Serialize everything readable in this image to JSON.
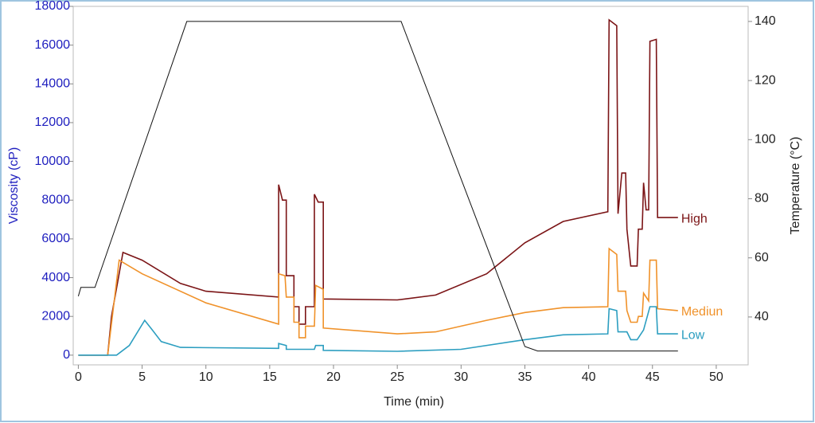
{
  "chart_data": {
    "type": "line",
    "x_label": "Time  (min)",
    "y_label": "Viscosity (cP)",
    "y2_label": "Temperature (°C)",
    "xlim": [
      -0.4,
      52.5
    ],
    "xticks": [
      0,
      5,
      10,
      15,
      20,
      25,
      30,
      35,
      40,
      45,
      50
    ],
    "ylim": [
      -500,
      18000
    ],
    "yticks": [
      0,
      2000,
      4000,
      6000,
      8000,
      10000,
      12000,
      14000,
      16000,
      18000
    ],
    "y2lim": [
      23.8,
      145.1
    ],
    "y2ticks": [
      40,
      60,
      80,
      100,
      120,
      140
    ],
    "series": [
      {
        "name": "High",
        "color": "#7b1416",
        "x": [
          0,
          2.3,
          2.6,
          3.5,
          5,
          8,
          10,
          15.7,
          15.7,
          16.0,
          16.3,
          16.3,
          16.9,
          16.9,
          17.3,
          17.3,
          17.8,
          17.8,
          18.5,
          18.5,
          18.8,
          19.2,
          19.2,
          25,
          28,
          32,
          35,
          38,
          41.5,
          41.6,
          42.2,
          42.3,
          42.6,
          42.9,
          43.0,
          43.3,
          43.8,
          43.9,
          44.2,
          44.3,
          44.5,
          44.7,
          44.8,
          45.3,
          45.4,
          47
        ],
        "values": [
          0,
          0,
          2000,
          5300,
          4900,
          3700,
          3300,
          3000,
          8800,
          8000,
          8000,
          4100,
          4100,
          2500,
          2500,
          1600,
          1600,
          2500,
          2500,
          8300,
          7900,
          7900,
          2900,
          2850,
          3100,
          4200,
          5800,
          6900,
          7400,
          17300,
          17000,
          7300,
          9400,
          9400,
          6500,
          4600,
          4600,
          6500,
          6500,
          8900,
          7500,
          7500,
          16200,
          16300,
          7100,
          7100
        ]
      },
      {
        "name": "Mediun",
        "color": "#f0922a",
        "x": [
          0,
          2.3,
          3.2,
          5,
          10,
          15.7,
          15.7,
          16.2,
          16.3,
          16.9,
          16.9,
          17.3,
          17.3,
          17.8,
          17.8,
          18.5,
          18.6,
          19.2,
          19.2,
          25,
          28,
          32,
          35,
          38,
          41.5,
          41.6,
          42.2,
          42.3,
          42.9,
          43,
          43.3,
          43.8,
          43.9,
          44.2,
          44.3,
          44.7,
          44.8,
          45.3,
          45.4,
          47
        ],
        "values": [
          0,
          0,
          4900,
          4200,
          2700,
          1600,
          4200,
          4100,
          3000,
          3000,
          1700,
          1700,
          900,
          900,
          1500,
          1500,
          3600,
          3400,
          1400,
          1100,
          1200,
          1800,
          2200,
          2450,
          2500,
          5500,
          5200,
          3300,
          3300,
          2300,
          1700,
          1700,
          2000,
          2000,
          3200,
          2800,
          4900,
          4900,
          2400,
          2300
        ]
      },
      {
        "name": "Low",
        "color": "#2c9ec0",
        "x": [
          0,
          3,
          4,
          5.2,
          5.8,
          6.5,
          8,
          15.7,
          15.7,
          16.3,
          16.3,
          18.5,
          18.6,
          19.2,
          19.2,
          25,
          30,
          35,
          38,
          41.5,
          41.6,
          42.2,
          42.3,
          43,
          43.3,
          43.8,
          44.3,
          44.8,
          45.3,
          45.4,
          47
        ],
        "values": [
          0,
          0,
          500,
          1800,
          1300,
          700,
          400,
          350,
          600,
          500,
          300,
          300,
          500,
          500,
          250,
          200,
          300,
          800,
          1050,
          1100,
          2400,
          2300,
          1200,
          1200,
          800,
          800,
          1300,
          2500,
          2500,
          1100,
          1100
        ]
      },
      {
        "name": "Temperature",
        "color": "#111111",
        "axis": "y2",
        "x": [
          0,
          0.2,
          1.3,
          8.5,
          25.3,
          35,
          36,
          47
        ],
        "values": [
          47,
          50,
          50,
          140,
          140,
          30,
          28.5,
          28.5
        ]
      }
    ]
  }
}
